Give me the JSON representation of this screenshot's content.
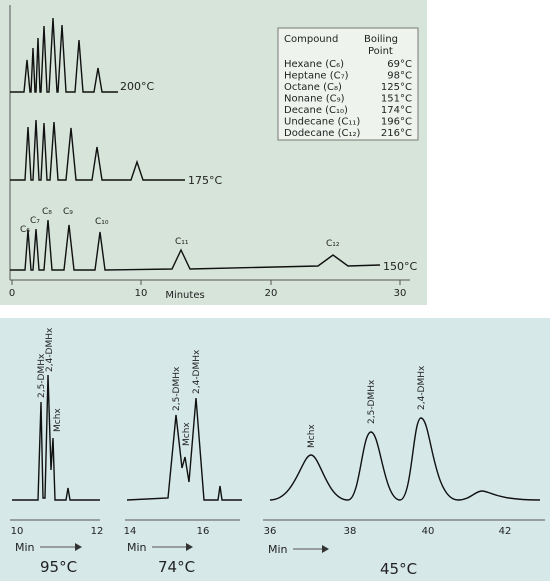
{
  "top": {
    "table": {
      "header": [
        "Compound",
        "Boiling",
        "Point"
      ],
      "rows": [
        [
          "Hexane (C₆)",
          "69°C"
        ],
        [
          "Heptane (C₇)",
          "98°C"
        ],
        [
          "Octane (C₈)",
          "125°C"
        ],
        [
          "Nonane (C₉)",
          "151°C"
        ],
        [
          "Decane (C₁₀)",
          "174°C"
        ],
        [
          "Undecane (C₁₁)",
          "196°C"
        ],
        [
          "Dodecane (C₁₂)",
          "216°C"
        ]
      ]
    },
    "temps": [
      "200°C",
      "175°C",
      "150°C"
    ],
    "peaks": [
      "C₆",
      "C₇",
      "C₈",
      "C₉",
      "C₁₀",
      "C₁₁",
      "C₁₂"
    ],
    "xticks": [
      "0",
      "10",
      "20",
      "30"
    ],
    "xlabel": "Minutes"
  },
  "bottom": {
    "panels": [
      {
        "temp": "95°C",
        "xticks": [
          "10",
          "12"
        ],
        "peaks": [
          "2,5-DMHx",
          "2,4-DMHx",
          "Mchx"
        ]
      },
      {
        "temp": "74°C",
        "xticks": [
          "14",
          "16"
        ],
        "peaks": [
          "2,5-DMHx",
          "Mchx",
          "2,4-DMHx"
        ]
      },
      {
        "temp": "45°C",
        "xticks": [
          "36",
          "38",
          "40",
          "42"
        ],
        "peaks": [
          "Mchx",
          "2,5-DMHx",
          "2,4-DMHx"
        ]
      }
    ],
    "xlabel": "Min"
  }
}
